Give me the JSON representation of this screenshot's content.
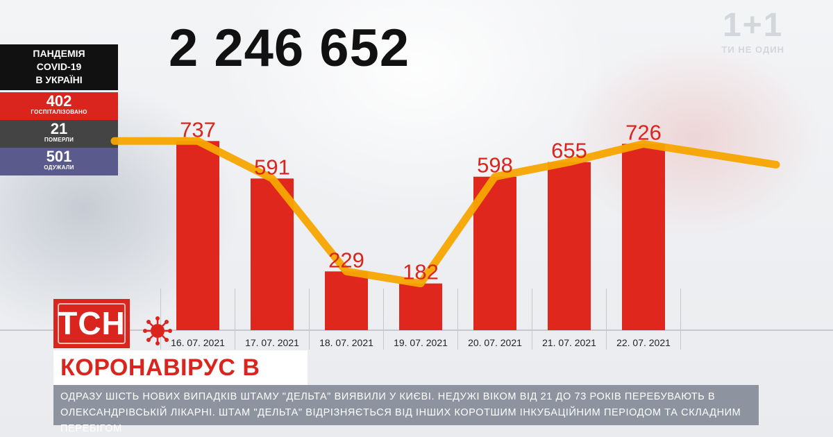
{
  "channel": {
    "logo": "1+1",
    "slogan": "ТИ НЕ ОДИН"
  },
  "total_cases": "2 246 652",
  "panel": {
    "title_lines": [
      "ПАНДЕМІЯ",
      "COVID-19",
      "В УКРАЇНІ"
    ],
    "hospitalized": {
      "value": "402",
      "label": "ГОСПІТАЛІЗОВАНО"
    },
    "died": {
      "value": "21",
      "label": "ПОМЕРЛИ"
    },
    "recovered": {
      "value": "501",
      "label": "ОДУЖАЛИ"
    }
  },
  "chart_data": {
    "type": "bar",
    "categories": [
      "16. 07. 2021",
      "17. 07. 2021",
      "18. 07. 2021",
      "19. 07. 2021",
      "20. 07. 2021",
      "21. 07. 2021",
      "22. 07. 2021"
    ],
    "values": [
      737,
      591,
      229,
      182,
      598,
      655,
      726
    ],
    "data_labels": [
      "737",
      "591",
      "229",
      "182",
      "598",
      "655",
      "726"
    ],
    "trend_line": true,
    "colors": {
      "bar": "#e0271d",
      "trend": "#f7a500",
      "label": "#d9251d"
    }
  },
  "brand": {
    "tsn": "ТСН"
  },
  "headline": "КОРОНАВІРУС В УКРАЇНІ",
  "ticker": "ОДРАЗУ ШІСТЬ НОВИХ ВИПАДКІВ ШТАМУ \"ДЕЛЬТА\" ВИЯВИЛИ У КИЄВІ. НЕДУЖІ ВІКОМ ВІД 21 ДО 73 РОКІВ ПЕРЕБУВАЮТЬ В ОЛЕКСАНДРІВСЬКІЙ ЛІКАРНІ. ШТАМ \"ДЕЛЬТА\" ВІДРІЗНЯЄТЬСЯ ВІД ІНШИХ КОРОТШИМ ІНКУБАЦІЙНИМ ПЕРІОДОМ ТА СКЛАДНИМ ПЕРЕБІГОМ"
}
